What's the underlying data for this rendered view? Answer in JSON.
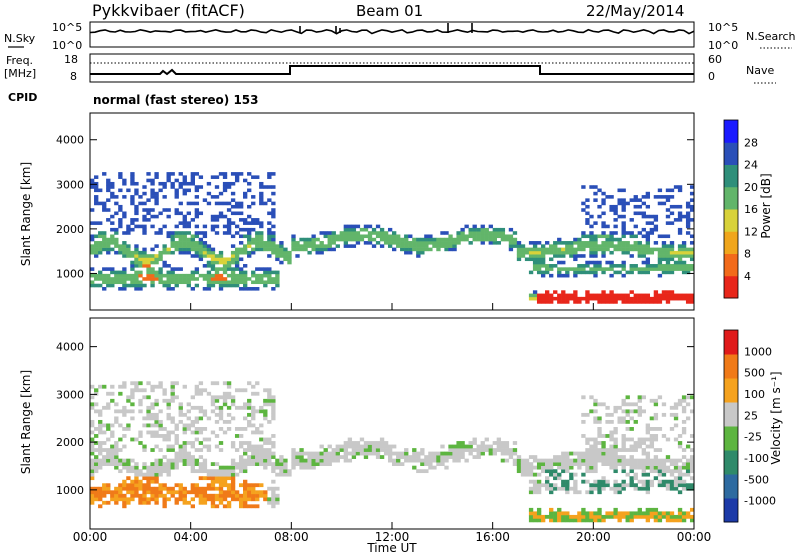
{
  "header": {
    "title": "Pykkvibaer (fitACF)",
    "beam": "Beam 01",
    "date": "22/May/2014"
  },
  "noise_panel": {
    "left_label": "N.Sky",
    "left_ticks": [
      "10^5",
      "10^0"
    ],
    "right_label": "N.Search",
    "right_ticks": [
      "10^5",
      "10^0"
    ]
  },
  "freq_panel": {
    "left_label_1": "Freq.",
    "left_label_2": "[MHz]",
    "left_ticks": [
      "18",
      "8"
    ],
    "right_label": "Nave",
    "right_ticks": [
      "60",
      "0"
    ],
    "cpid_label": "CPID",
    "cpid_text": "normal (fast stereo) 153"
  },
  "colors": {
    "power_scale": [
      "#1a1aff",
      "#2a4fb8",
      "#2f8f7a",
      "#62b56a",
      "#d8d23a",
      "#f0a61c",
      "#f26a1a",
      "#e8261a"
    ],
    "velocity_scale": [
      "#1c3aa8",
      "#2d6aa0",
      "#2f8a6a",
      "#5db540",
      "#c8c8c8",
      "#f5a21e",
      "#f07a18",
      "#e01a1a"
    ]
  },
  "chart_data": [
    {
      "type": "heatmap",
      "title": "Power",
      "ylabel": "Slant Range [km]",
      "ylim": [
        180,
        4600
      ],
      "y_ticks": [
        "4000",
        "3000",
        "2000",
        "1000"
      ],
      "colorbar_label": "Power [dB]",
      "colorbar_ticks": [
        "28",
        "24",
        "20",
        "16",
        "12",
        "8",
        "4"
      ],
      "colorbar_range": [
        0,
        30
      ]
    },
    {
      "type": "heatmap",
      "title": "Velocity",
      "ylabel": "Slant Range [km]",
      "ylim": [
        180,
        4600
      ],
      "y_ticks": [
        "4000",
        "3000",
        "2000",
        "1000"
      ],
      "colorbar_label": "Velocity [m s⁻¹]",
      "colorbar_ticks": [
        "1000",
        "500",
        "100",
        "25",
        "-25",
        "-100",
        "-500",
        "-1000"
      ],
      "x_ticks": [
        "00:00",
        "04:00",
        "08:00",
        "12:00",
        "16:00",
        "20:00",
        "00:00"
      ],
      "xlabel": "Time UT",
      "xlim": [
        "00:00",
        "24:00"
      ]
    }
  ]
}
